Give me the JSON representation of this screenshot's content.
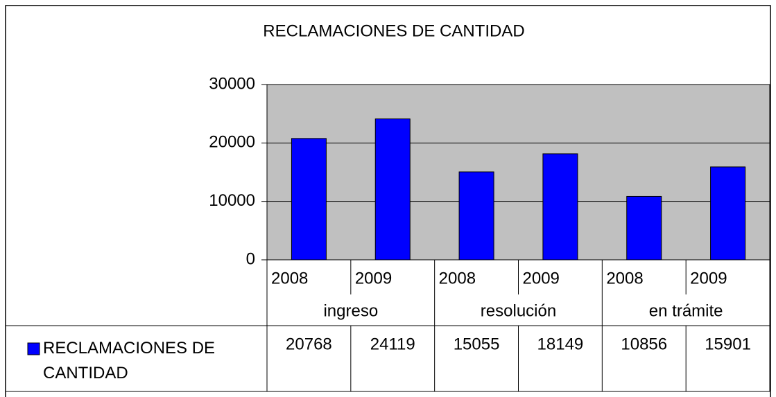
{
  "chart_data": {
    "type": "bar",
    "title": "RECLAMACIONES DE CANTIDAD",
    "categories": [
      "2008",
      "2009",
      "2008",
      "2009",
      "2008",
      "2009"
    ],
    "groups": [
      "ingreso",
      "resolución",
      "en trámite"
    ],
    "series": [
      {
        "name": "RECLAMACIONES DE CANTIDAD",
        "color": "#0000ff",
        "values": [
          20768,
          24119,
          15055,
          18149,
          10856,
          15901
        ]
      }
    ],
    "ylim": [
      0,
      30000
    ],
    "yticks": [
      0,
      10000,
      20000,
      30000
    ],
    "grid": true,
    "plot_background": "#c0c0c0"
  }
}
